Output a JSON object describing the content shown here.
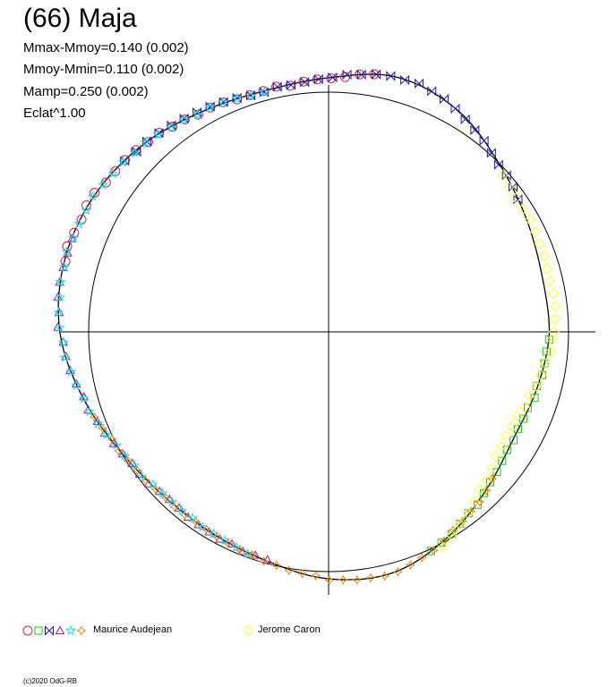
{
  "header": {
    "title": "(66) Maja",
    "stats": [
      "Mmax-Mmoy=0.140 (0.002)",
      "Mmoy-Mmin=0.110 (0.002)",
      "Mamp=0.250 (0.002)",
      "Eclat^1.00"
    ]
  },
  "legend": {
    "observers": [
      {
        "name": "Maurice Audejean",
        "symbols": [
          "circle",
          "square",
          "bowtie",
          "triangle",
          "star",
          "diamond-star"
        ],
        "colors": [
          "#e0204a",
          "#1dc41d",
          "#1a1aa8",
          "#a8169c",
          "#1ee0e0",
          "#e08a1a"
        ]
      },
      {
        "name": "Jerome Caron",
        "symbols": [
          "diamond"
        ],
        "colors": [
          "#ffff30"
        ]
      }
    ]
  },
  "copyright": "(c)2020 OdG-RB",
  "chart_data": {
    "type": "polar-lightcurve",
    "reference": "circle",
    "crosshair": true,
    "mmax_minus_mmoy": 0.14,
    "mmoy_minus_mmin": 0.11,
    "amplitude": 0.25,
    "radius_profile": {
      "phase_deg": [
        0,
        15,
        30,
        45,
        60,
        75,
        90,
        105,
        120,
        135,
        150,
        165,
        180,
        195,
        210,
        225,
        240,
        255,
        270,
        285,
        300,
        315,
        330,
        345,
        360
      ],
      "relative_radius": [
        0.92,
        0.92,
        0.95,
        1.0,
        1.07,
        1.1,
        1.06,
        1.04,
        1.06,
        1.1,
        1.13,
        1.14,
        1.12,
        1.06,
        1.0,
        0.97,
        0.97,
        0.99,
        1.03,
        1.04,
        0.99,
        0.93,
        0.89,
        0.9,
        0.92
      ]
    },
    "series": [
      {
        "observer": "Maurice Audejean",
        "symbol": "circle",
        "color": "#e0204a",
        "phase_range_deg": [
          80,
          165
        ]
      },
      {
        "observer": "Maurice Audejean",
        "symbol": "square",
        "color": "#1dc41d",
        "phase_range_deg": [
          295,
          358
        ]
      },
      {
        "observer": "Maurice Audejean",
        "symbol": "bowtie",
        "color": "#1a1aa8",
        "phase_range_deg": [
          35,
          140
        ]
      },
      {
        "observer": "Maurice Audejean",
        "symbol": "triangle",
        "color": "#a8169c",
        "phase_range_deg": [
          160,
          255
        ]
      },
      {
        "observer": "Maurice Audejean",
        "symbol": "star",
        "color": "#1ee0e0",
        "phase_range_deg": [
          105,
          250
        ]
      },
      {
        "observer": "Maurice Audejean",
        "symbol": "diamond-star",
        "color": "#e08a1a",
        "phase_range_deg": [
          200,
          318
        ]
      },
      {
        "observer": "Jerome Caron",
        "symbol": "diamond",
        "color": "#ffff30",
        "phase_range_deg": [
          298,
          358
        ]
      },
      {
        "observer": "Jerome Caron",
        "symbol": "diamond",
        "color": "#ffff30",
        "phase_range_deg": [
          0,
          42
        ]
      }
    ]
  }
}
